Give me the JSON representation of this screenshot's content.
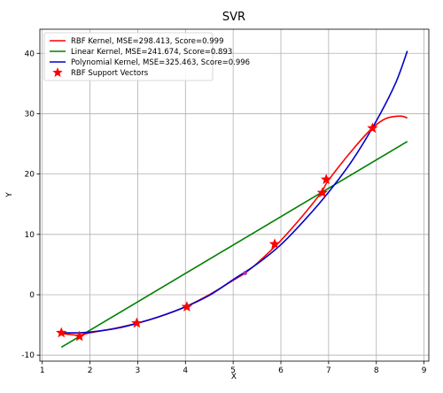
{
  "chart_data": {
    "type": "line",
    "title": "SVR",
    "xlabel": "X",
    "ylabel": "Y",
    "xlim": [
      0.95,
      9.1
    ],
    "ylim": [
      -11,
      44
    ],
    "xticks": [
      1,
      2,
      3,
      4,
      5,
      6,
      7,
      8,
      9
    ],
    "yticks": [
      -10,
      0,
      10,
      20,
      30,
      40
    ],
    "grid": true,
    "legend_position": "top-left",
    "series": [
      {
        "name": "RBF Kernel, MSE=298.413, Score=0.999",
        "color": "#ff0000",
        "x": [
          1.4,
          1.6,
          1.8,
          2.0,
          2.5,
          3.0,
          3.5,
          4.0,
          4.5,
          5.0,
          5.25,
          5.5,
          6.0,
          6.5,
          6.85,
          7.0,
          7.5,
          7.9,
          8.2,
          8.5,
          8.65
        ],
        "y": [
          -6.4,
          -6.6,
          -6.7,
          -6.3,
          -5.6,
          -4.7,
          -3.5,
          -2.0,
          0.0,
          2.4,
          3.6,
          5.2,
          9.0,
          13.5,
          17.0,
          19.0,
          24.0,
          27.5,
          29.2,
          29.6,
          29.3
        ]
      },
      {
        "name": "Linear Kernel, MSE=241.674, Score=0.893",
        "color": "#008000",
        "x": [
          1.4,
          8.65
        ],
        "y": [
          -8.7,
          25.4
        ]
      },
      {
        "name": "Polynomial Kernel, MSE=325.463, Score=0.996",
        "color": "#0000cc",
        "x": [
          1.4,
          1.8,
          2.2,
          2.6,
          3.0,
          3.5,
          4.0,
          4.5,
          5.0,
          5.5,
          6.0,
          6.5,
          7.0,
          7.5,
          8.0,
          8.4,
          8.65
        ],
        "y": [
          -6.3,
          -6.3,
          -6.0,
          -5.5,
          -4.7,
          -3.5,
          -2.0,
          -0.1,
          2.5,
          5.1,
          8.3,
          12.4,
          17.0,
          22.3,
          28.8,
          35.0,
          40.4
        ]
      }
    ],
    "support_vectors": {
      "name": "RBF Support Vectors",
      "color": "#ff0000",
      "x": [
        1.4,
        1.78,
        2.98,
        4.03,
        5.87,
        6.87,
        6.95,
        7.92
      ],
      "y": [
        -6.3,
        -6.9,
        -4.7,
        -2.0,
        8.4,
        16.9,
        19.1,
        27.6
      ]
    },
    "extra_point": {
      "x": 5.25,
      "y": 3.6,
      "color": "#9933cc"
    }
  }
}
